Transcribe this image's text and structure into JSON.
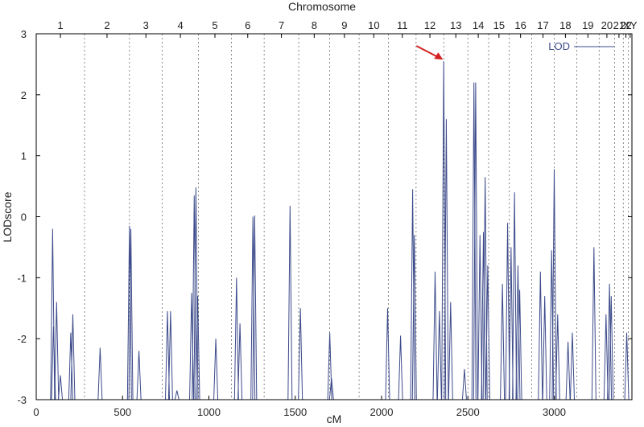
{
  "chart_data": {
    "type": "line",
    "title": "",
    "xlabel": "cM",
    "ylabel": "LODscore",
    "top_axis_title": "Chromosome",
    "xlim": [
      0,
      3450
    ],
    "ylim": [
      -3,
      3
    ],
    "x_ticks": [
      0,
      500,
      1000,
      1500,
      2000,
      2500,
      3000
    ],
    "y_ticks": [
      -3,
      -2,
      -1,
      0,
      1,
      2,
      3
    ],
    "grid": "vertical dashed at chromosome boundaries",
    "legend": {
      "position": "top-right",
      "entries": [
        "LOD"
      ]
    },
    "series_color": "#3c4a8a",
    "annotation": {
      "type": "arrow",
      "color": "#d32020",
      "target_x": 2370,
      "target_y": 2.55
    },
    "chromosome_boundaries": [
      280,
      540,
      730,
      940,
      1130,
      1320,
      1520,
      1700,
      1870,
      2040,
      2200,
      2360,
      2500,
      2620,
      2740,
      2870,
      3000,
      3130,
      3260,
      3350,
      3400,
      3430
    ],
    "chromosomes": [
      {
        "label": "1",
        "center": 140
      },
      {
        "label": "2",
        "center": 410
      },
      {
        "label": "3",
        "center": 635
      },
      {
        "label": "4",
        "center": 835
      },
      {
        "label": "5",
        "center": 1035
      },
      {
        "label": "6",
        "center": 1225
      },
      {
        "label": "7",
        "center": 1420
      },
      {
        "label": "8",
        "center": 1610
      },
      {
        "label": "9",
        "center": 1785
      },
      {
        "label": "10",
        "center": 1955
      },
      {
        "label": "11",
        "center": 2120
      },
      {
        "label": "12",
        "center": 2280
      },
      {
        "label": "13",
        "center": 2430
      },
      {
        "label": "14",
        "center": 2560
      },
      {
        "label": "15",
        "center": 2680
      },
      {
        "label": "16",
        "center": 2805
      },
      {
        "label": "17",
        "center": 2935
      },
      {
        "label": "18",
        "center": 3065
      },
      {
        "label": "19",
        "center": 3195
      },
      {
        "label": "20",
        "center": 3305
      },
      {
        "label": "21",
        "center": 3375
      },
      {
        "label": "22",
        "center": 3415
      },
      {
        "label": "XY",
        "center": 3440
      }
    ],
    "peaks": [
      {
        "x": 95,
        "y": -0.2
      },
      {
        "x": 100,
        "y": -1.8
      },
      {
        "x": 118,
        "y": -1.4
      },
      {
        "x": 140,
        "y": -2.6
      },
      {
        "x": 200,
        "y": -1.9
      },
      {
        "x": 212,
        "y": -1.6
      },
      {
        "x": 370,
        "y": -2.15
      },
      {
        "x": 540,
        "y": -0.15
      },
      {
        "x": 548,
        "y": -0.2
      },
      {
        "x": 595,
        "y": -2.2
      },
      {
        "x": 760,
        "y": -1.55
      },
      {
        "x": 778,
        "y": -1.55
      },
      {
        "x": 815,
        "y": -2.85
      },
      {
        "x": 900,
        "y": -1.25
      },
      {
        "x": 915,
        "y": 0.35
      },
      {
        "x": 925,
        "y": 0.48
      },
      {
        "x": 935,
        "y": -1.3
      },
      {
        "x": 1040,
        "y": -2.0
      },
      {
        "x": 1160,
        "y": -1.0
      },
      {
        "x": 1180,
        "y": -1.75
      },
      {
        "x": 1255,
        "y": 0.0
      },
      {
        "x": 1265,
        "y": 0.02
      },
      {
        "x": 1470,
        "y": 0.18
      },
      {
        "x": 1530,
        "y": -1.5
      },
      {
        "x": 1700,
        "y": -1.9
      },
      {
        "x": 1710,
        "y": -2.65
      },
      {
        "x": 2035,
        "y": -1.5
      },
      {
        "x": 2110,
        "y": -1.95
      },
      {
        "x": 2180,
        "y": 0.45
      },
      {
        "x": 2190,
        "y": -0.3
      },
      {
        "x": 2310,
        "y": -0.9
      },
      {
        "x": 2335,
        "y": -1.55
      },
      {
        "x": 2360,
        "y": 2.55
      },
      {
        "x": 2375,
        "y": 1.6
      },
      {
        "x": 2400,
        "y": -1.4
      },
      {
        "x": 2480,
        "y": -2.5
      },
      {
        "x": 2535,
        "y": 2.2
      },
      {
        "x": 2545,
        "y": 2.2
      },
      {
        "x": 2570,
        "y": -0.3
      },
      {
        "x": 2590,
        "y": -0.25
      },
      {
        "x": 2600,
        "y": 0.65
      },
      {
        "x": 2615,
        "y": -0.8
      },
      {
        "x": 2700,
        "y": -1.1
      },
      {
        "x": 2730,
        "y": -0.1
      },
      {
        "x": 2750,
        "y": -0.5
      },
      {
        "x": 2770,
        "y": 0.4
      },
      {
        "x": 2790,
        "y": -0.8
      },
      {
        "x": 2800,
        "y": -1.2
      },
      {
        "x": 2920,
        "y": -0.9
      },
      {
        "x": 2945,
        "y": -1.3
      },
      {
        "x": 2985,
        "y": -0.55
      },
      {
        "x": 3000,
        "y": 0.78
      },
      {
        "x": 3020,
        "y": -1.6
      },
      {
        "x": 3080,
        "y": -2.05
      },
      {
        "x": 3105,
        "y": -1.9
      },
      {
        "x": 3230,
        "y": -0.5
      },
      {
        "x": 3300,
        "y": -1.6
      },
      {
        "x": 3320,
        "y": -1.1
      },
      {
        "x": 3330,
        "y": -1.3
      },
      {
        "x": 3420,
        "y": -1.9
      }
    ]
  }
}
